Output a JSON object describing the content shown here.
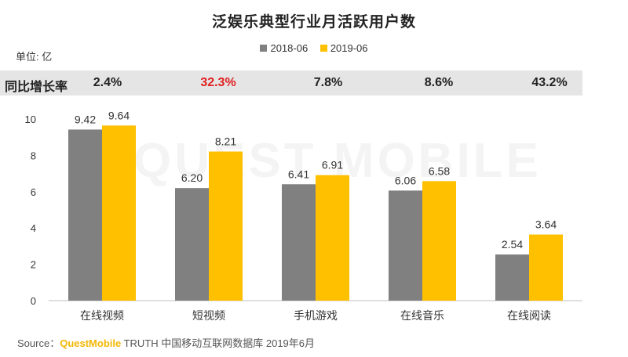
{
  "title": "泛娱乐典型行业月活跃用户数",
  "unit_label": "单位: 亿",
  "legend": [
    {
      "label": "2018-06",
      "color": "#808080"
    },
    {
      "label": "2019-06",
      "color": "#ffc000"
    }
  ],
  "growth": {
    "label": "同比增长率",
    "values": [
      "2.4%",
      "32.3%",
      "7.8%",
      "8.6%",
      "43.2%"
    ],
    "highlight_color": "#e02020"
  },
  "watermark": "QUEST MOBILE",
  "source": {
    "prefix": "Source：",
    "brand": "QuestMobile",
    "text": " TRUTH 中国移动互联网数据库 2019年6月"
  },
  "chart_data": {
    "type": "bar",
    "title": "泛娱乐典型行业月活跃用户数",
    "categories": [
      "在线视频",
      "短视频",
      "手机游戏",
      "在线音乐",
      "在线阅读"
    ],
    "series": [
      {
        "name": "2018-06",
        "color": "#808080",
        "values": [
          9.42,
          6.2,
          6.41,
          6.06,
          2.54
        ]
      },
      {
        "name": "2019-06",
        "color": "#ffc000",
        "values": [
          9.64,
          8.21,
          6.91,
          6.58,
          3.64
        ]
      }
    ],
    "yticks": [
      0,
      2,
      4,
      6,
      8,
      10
    ],
    "ylim": [
      0,
      10
    ],
    "legend_position": "top"
  }
}
